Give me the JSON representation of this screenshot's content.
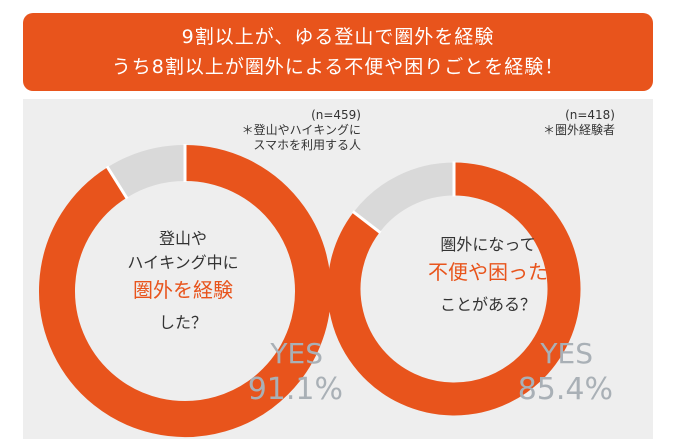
{
  "banner": {
    "line1": "9割以上が、ゆる登山で圏外を経験",
    "line2": "うち8割以上が圏外による不便や困りごとを経験！"
  },
  "colors": {
    "accent": "#e8541c",
    "rest": "#d9d9d9",
    "panel": "#eeeeee",
    "muted": "#a9b0b6"
  },
  "chart_data": [
    {
      "type": "pie",
      "sample": "(n=459)",
      "note_line1": "＊登山やハイキングに",
      "note_line2": "スマホを利用する人",
      "question_line1": "登山や",
      "question_line2": "ハイキング中に",
      "question_highlight": "圏外を経験",
      "question_line4": "した？",
      "answer_label": "YES",
      "answer_value": "91.1%",
      "slices": [
        {
          "label": "YES",
          "value": 91.1
        },
        {
          "label": "",
          "value": 8.9
        }
      ]
    },
    {
      "type": "pie",
      "sample": "(n=418)",
      "note_line1": "＊圏外経験者",
      "note_line2": "",
      "question_line1": "圏外になって",
      "question_highlight": "不便や困った",
      "question_line3": "ことがある？",
      "answer_label": "YES",
      "answer_value": "85.4%",
      "slices": [
        {
          "label": "YES",
          "value": 85.4
        },
        {
          "label": "",
          "value": 14.6
        }
      ]
    }
  ]
}
